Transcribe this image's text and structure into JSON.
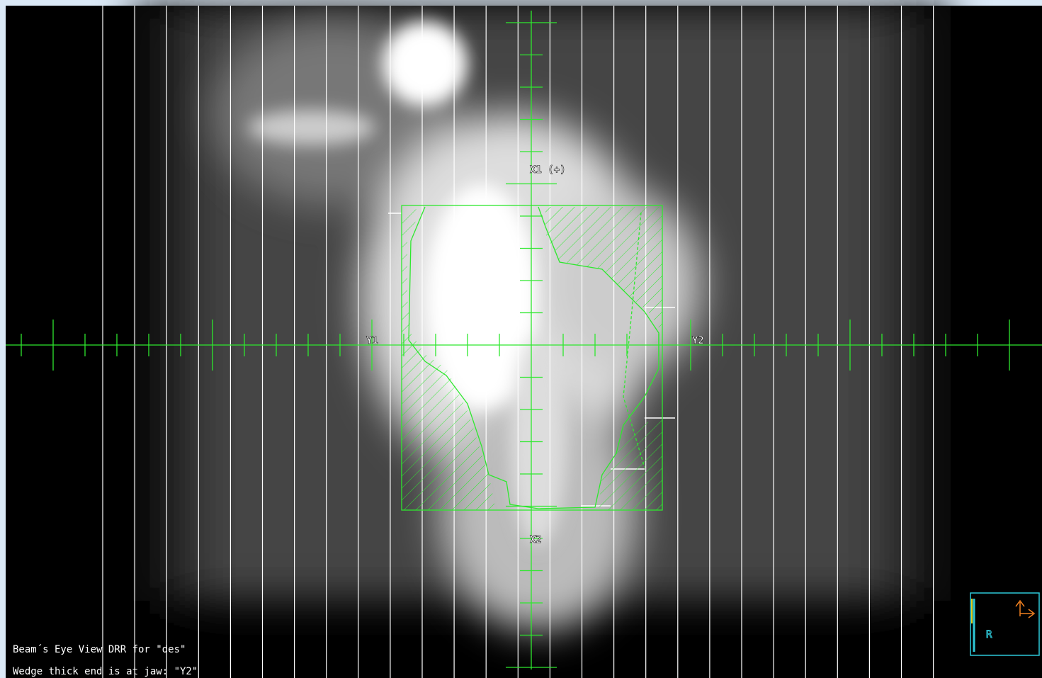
{
  "axis_labels": {
    "x1": "X1 (+)",
    "x2": "X2",
    "y1": "Y1",
    "y2": "Y2"
  },
  "status": {
    "line1": "Beam´s Eye View DRR for \"des\"",
    "line2": "Wedge thick end is at jaw: \"Y2\""
  },
  "orientation": "R"
}
